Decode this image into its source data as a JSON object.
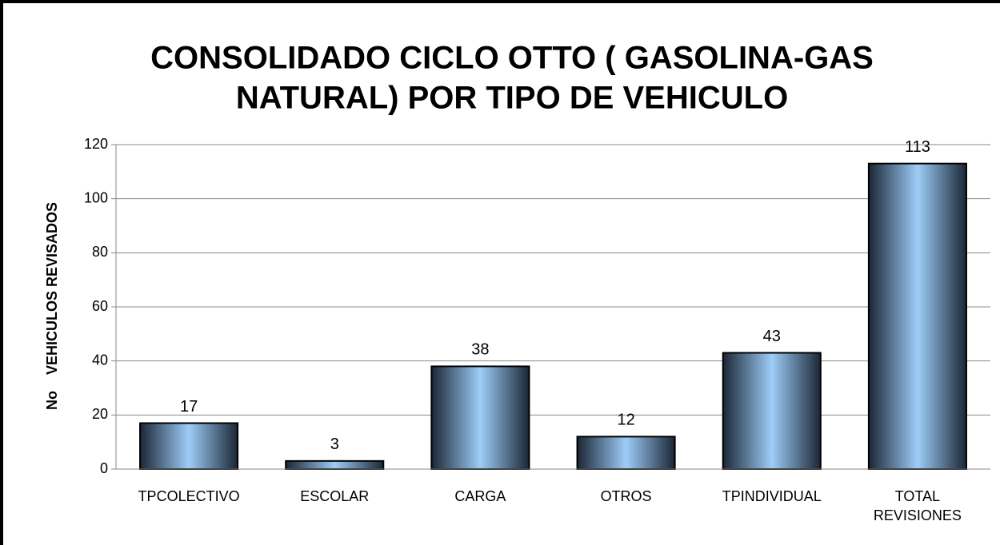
{
  "chart_data": {
    "type": "bar",
    "title": [
      "CONSOLIDADO CICLO OTTO ( GASOLINA-GAS",
      "NATURAL) POR TIPO DE VEHICULO"
    ],
    "y_label": "No    VEHICULOS REVISADOS",
    "categories": [
      "TPCOLECTIVO",
      "ESCOLAR",
      "CARGA",
      "OTROS",
      "TPINDIVIDUAL",
      "TOTAL REVISIONES"
    ],
    "values": [
      17,
      3,
      38,
      12,
      43,
      113
    ],
    "color": "#9dcdf8",
    "ylim": [
      0,
      120
    ],
    "yticks": [
      0,
      20,
      40,
      60,
      80,
      100,
      120
    ],
    "grid": true
  }
}
